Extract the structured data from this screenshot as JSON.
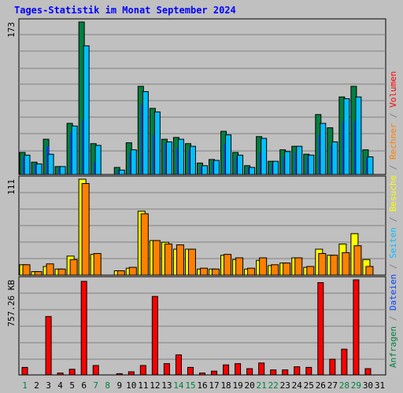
{
  "chart_data": {
    "type": "bar",
    "title": "Tages-Statistik im Monat September 2024",
    "right_label": [
      {
        "text": "Anfragen",
        "color": "#008040"
      },
      {
        "text": " / ",
        "color": "#808080"
      },
      {
        "text": "Dateien",
        "color": "#0040ff"
      },
      {
        "text": " / ",
        "color": "#808080"
      },
      {
        "text": "Seiten",
        "color": "#00c0ff"
      },
      {
        "text": " / ",
        "color": "#808080"
      },
      {
        "text": "Besuche",
        "color": "#ffff00"
      },
      {
        "text": " / ",
        "color": "#808080"
      },
      {
        "text": "Rechner",
        "color": "#ff8000"
      },
      {
        "text": " / ",
        "color": "#808080"
      },
      {
        "text": "Volumen",
        "color": "#ff0000"
      }
    ],
    "days": [
      "1",
      "2",
      "3",
      "4",
      "5",
      "6",
      "7",
      "8",
      "9",
      "10",
      "11",
      "12",
      "13",
      "14",
      "15",
      "16",
      "17",
      "18",
      "19",
      "20",
      "21",
      "22",
      "23",
      "24",
      "25",
      "26",
      "27",
      "28",
      "29",
      "30",
      "31"
    ],
    "weekend_days": [
      "1",
      "7",
      "8",
      "14",
      "15",
      "21",
      "22",
      "28",
      "29"
    ],
    "colors": {
      "weekday": "#0000ff",
      "weekend": "#008040",
      "anfragen": "#008040",
      "dateien": "#0040ff",
      "seiten": "#00c0ff",
      "besuche": "#ffff00",
      "rechner": "#ff8000",
      "volumen": "#ff0000"
    },
    "panels": [
      {
        "name": "requests",
        "max_label": "173",
        "max": 173,
        "series": [
          {
            "name": "Anfragen",
            "values": [
              25,
              14,
              40,
              9,
              58,
              173,
              35,
              0,
              8,
              36,
              100,
              75,
              40,
              42,
              35,
              13,
              17,
              49,
              25,
              10,
              43,
              15,
              28,
              32,
              23,
              68,
              53,
              88,
              100,
              28,
              0
            ]
          },
          {
            "name": "Dateien",
            "values": [
              20,
              12,
              32,
              7,
              48,
              62,
              14,
              0,
              5,
              24,
              80,
              45,
              35,
              30,
              28,
              9,
              14,
              35,
              20,
              8,
              25,
              12,
              20,
              25,
              20,
              45,
              33,
              60,
              60,
              18,
              0
            ]
          },
          {
            "name": "Seiten",
            "values": [
              22,
              12,
              23,
              9,
              55,
              146,
              33,
              0,
              5,
              28,
              94,
              71,
              37,
              40,
              32,
              10,
              16,
              45,
              22,
              8,
              41,
              15,
              26,
              32,
              22,
              58,
              37,
              86,
              88,
              20,
              0
            ]
          }
        ]
      },
      {
        "name": "visits",
        "max_label": "111",
        "max": 111,
        "series": [
          {
            "name": "Besuche",
            "values": [
              12,
              4,
              10,
              7,
              22,
              111,
              24,
              0,
              5,
              8,
              74,
              40,
              38,
              30,
              30,
              7,
              7,
              23,
              18,
              7,
              17,
              11,
              14,
              20,
              9,
              30,
              23,
              36,
              48,
              18,
              0
            ]
          },
          {
            "name": "Rechner",
            "values": [
              12,
              4,
              13,
              7,
              18,
              106,
              25,
              0,
              5,
              9,
              71,
              40,
              36,
              35,
              30,
              8,
              7,
              24,
              20,
              8,
              20,
              12,
              14,
              20,
              10,
              25,
              23,
              26,
              34,
              10,
              0
            ]
          }
        ]
      },
      {
        "name": "volume",
        "max_label": "757.26 KB",
        "max": 757.26,
        "series": [
          {
            "name": "Volumen",
            "values": [
              60,
              0,
              465,
              15,
              45,
              745,
              75,
              0,
              10,
              25,
              75,
              625,
              90,
              160,
              60,
              15,
              30,
              80,
              90,
              50,
              95,
              40,
              40,
              65,
              60,
              735,
              125,
              205,
              757,
              50,
              0
            ]
          }
        ]
      }
    ]
  }
}
